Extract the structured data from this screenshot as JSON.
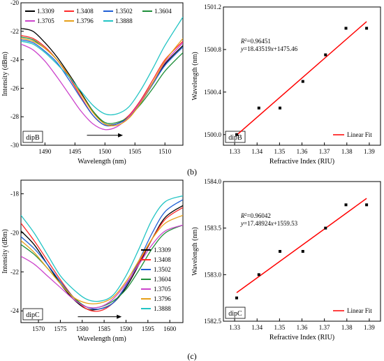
{
  "panel_labels": {
    "b": "(b)",
    "c": "(c)"
  },
  "colors": {
    "1.3309": "#000000",
    "1.3408": "#ff2a2a",
    "1.3502": "#1f5fd6",
    "1.3604": "#1e8f3a",
    "1.3705": "#cc44cc",
    "1.3796": "#e6a019",
    "1.3888": "#22c4c4",
    "fit": "#ff0000"
  },
  "chart_data": [
    {
      "id": "b_left",
      "type": "line",
      "xlabel": "Wavelength (nm)",
      "ylabel": "Intensity (dBm)",
      "xlim": [
        1486,
        1513
      ],
      "ylim": [
        -30,
        -20
      ],
      "xticks": [
        1490,
        1495,
        1500,
        1505,
        1510
      ],
      "yticks": [
        -30,
        -28,
        -26,
        -24,
        -22,
        -20
      ],
      "tag": "dipB",
      "arrow": [
        1497,
        1503,
        -29.3
      ],
      "legend": {
        "layout": "grid",
        "position": "top-left"
      },
      "series": [
        {
          "name": "1.3309",
          "x": [
            1486,
            1488,
            1490,
            1492,
            1494,
            1496,
            1498,
            1500,
            1502,
            1504,
            1506,
            1508,
            1510,
            1513
          ],
          "y": [
            -21.8,
            -22.0,
            -22.8,
            -23.8,
            -25.0,
            -26.3,
            -27.6,
            -28.5,
            -28.5,
            -28.0,
            -26.9,
            -25.6,
            -24.3,
            -23.0
          ]
        },
        {
          "name": "1.3408",
          "x": [
            1486,
            1488,
            1490,
            1492,
            1494,
            1496,
            1498,
            1500,
            1502,
            1504,
            1506,
            1508,
            1510,
            1513
          ],
          "y": [
            -22.3,
            -22.5,
            -23.1,
            -24.0,
            -25.2,
            -26.6,
            -27.9,
            -28.6,
            -28.5,
            -27.9,
            -26.8,
            -25.4,
            -24.0,
            -22.7
          ]
        },
        {
          "name": "1.3502",
          "x": [
            1486,
            1488,
            1490,
            1492,
            1494,
            1496,
            1498,
            1500,
            1502,
            1504,
            1506,
            1508,
            1510,
            1513
          ],
          "y": [
            -22.6,
            -22.8,
            -23.4,
            -24.2,
            -25.4,
            -26.7,
            -27.9,
            -28.6,
            -28.5,
            -28.0,
            -27.0,
            -25.7,
            -24.4,
            -23.1
          ]
        },
        {
          "name": "1.3604",
          "x": [
            1486,
            1488,
            1490,
            1492,
            1494,
            1496,
            1498,
            1500,
            1502,
            1504,
            1506,
            1508,
            1510,
            1513
          ],
          "y": [
            -22.4,
            -22.6,
            -23.2,
            -24.0,
            -25.1,
            -26.4,
            -27.6,
            -28.4,
            -28.4,
            -28.0,
            -27.1,
            -26.0,
            -24.8,
            -23.5
          ]
        },
        {
          "name": "1.3705",
          "x": [
            1486,
            1488,
            1490,
            1492,
            1494,
            1496,
            1498,
            1500,
            1502,
            1504,
            1506,
            1508,
            1510,
            1513
          ],
          "y": [
            -22.9,
            -23.3,
            -24.1,
            -25.2,
            -26.4,
            -27.6,
            -28.5,
            -28.9,
            -28.7,
            -28.0,
            -26.9,
            -25.6,
            -24.2,
            -22.8
          ]
        },
        {
          "name": "1.3796",
          "x": [
            1486,
            1488,
            1490,
            1492,
            1494,
            1496,
            1498,
            1500,
            1502,
            1504,
            1506,
            1508,
            1510,
            1513
          ],
          "y": [
            -22.5,
            -22.7,
            -23.2,
            -24.0,
            -25.1,
            -26.4,
            -27.7,
            -28.5,
            -28.6,
            -28.1,
            -27.0,
            -25.6,
            -24.1,
            -22.5
          ]
        },
        {
          "name": "1.3888",
          "x": [
            1486,
            1488,
            1490,
            1492,
            1494,
            1496,
            1498,
            1500,
            1502,
            1504,
            1506,
            1508,
            1510,
            1513
          ],
          "y": [
            -22.7,
            -22.9,
            -23.5,
            -24.3,
            -25.2,
            -26.2,
            -27.2,
            -27.8,
            -27.8,
            -27.3,
            -26.1,
            -24.6,
            -23.0,
            -21.0
          ]
        }
      ]
    },
    {
      "id": "b_right",
      "type": "scatter",
      "xlabel": "Refractive Index (RIU)",
      "ylabel": "Wavelength (nm)",
      "xlim": [
        1.325,
        1.395
      ],
      "ylim": [
        1499.9,
        1501.2
      ],
      "xticks": [
        1.33,
        1.34,
        1.35,
        1.36,
        1.37,
        1.38,
        1.39
      ],
      "yticks": [
        1500.0,
        1500.4,
        1500.8,
        1501.2
      ],
      "ytick_decimals": 1,
      "tag": "dipB",
      "x": [
        1.3309,
        1.3408,
        1.3502,
        1.3604,
        1.3705,
        1.3796,
        1.3888
      ],
      "y": [
        1500.0,
        1500.25,
        1500.25,
        1500.5,
        1500.75,
        1501.0,
        1501.0
      ],
      "fit": {
        "slope": 18.43519,
        "intercept": 1475.46,
        "x_range": [
          1.3309,
          1.3888
        ],
        "name": "Linear Fit"
      },
      "annotation": {
        "r2": "=0.96451",
        "eq_y": "y",
        "eq_mid": "=18.43519",
        "eq_x": "x",
        "eq_end": "+1475.46"
      },
      "legend": {
        "position": "bottom-right"
      }
    },
    {
      "id": "c_left",
      "type": "line",
      "xlabel": "Wavelength (nm)",
      "ylabel": "Intensity (dBm)",
      "xlim": [
        1566,
        1603
      ],
      "ylim": [
        -24.6,
        -17.3
      ],
      "xticks": [
        1570,
        1575,
        1580,
        1585,
        1590,
        1595,
        1600
      ],
      "yticks": [
        -24,
        -22,
        -20,
        -18
      ],
      "tag": "dipC",
      "arrow": [
        1579,
        1589,
        -24.3
      ],
      "legend": {
        "layout": "column",
        "position": "bottom-right"
      },
      "series": [
        {
          "name": "1.3309",
          "x": [
            1566,
            1569,
            1572,
            1575,
            1578,
            1581,
            1584,
            1587,
            1590,
            1593,
            1596,
            1599,
            1603
          ],
          "y": [
            -19.9,
            -20.6,
            -21.6,
            -22.6,
            -23.4,
            -23.9,
            -23.9,
            -23.6,
            -22.8,
            -21.6,
            -20.3,
            -19.2,
            -18.6
          ]
        },
        {
          "name": "1.3408",
          "x": [
            1566,
            1569,
            1572,
            1575,
            1578,
            1581,
            1584,
            1587,
            1590,
            1593,
            1596,
            1599,
            1603
          ],
          "y": [
            -19.5,
            -20.4,
            -21.4,
            -22.4,
            -23.3,
            -23.9,
            -24.0,
            -23.6,
            -22.7,
            -21.5,
            -20.3,
            -19.3,
            -18.7
          ]
        },
        {
          "name": "1.3502",
          "x": [
            1566,
            1569,
            1572,
            1575,
            1578,
            1581,
            1584,
            1587,
            1590,
            1593,
            1596,
            1599,
            1603
          ],
          "y": [
            -20.2,
            -20.8,
            -21.6,
            -22.5,
            -23.3,
            -23.8,
            -23.9,
            -23.6,
            -22.7,
            -21.4,
            -20.0,
            -18.9,
            -18.3
          ]
        },
        {
          "name": "1.3604",
          "x": [
            1566,
            1569,
            1572,
            1575,
            1578,
            1581,
            1584,
            1587,
            1590,
            1593,
            1596,
            1599,
            1603
          ],
          "y": [
            -20.6,
            -21.1,
            -21.8,
            -22.6,
            -23.3,
            -23.8,
            -23.8,
            -23.5,
            -22.9,
            -21.9,
            -20.8,
            -20.0,
            -19.6
          ]
        },
        {
          "name": "1.3705",
          "x": [
            1566,
            1569,
            1572,
            1575,
            1578,
            1581,
            1584,
            1587,
            1590,
            1593,
            1596,
            1599,
            1603
          ],
          "y": [
            -21.2,
            -21.6,
            -22.2,
            -22.8,
            -23.4,
            -23.8,
            -23.8,
            -23.4,
            -22.6,
            -21.6,
            -20.6,
            -19.9,
            -19.6
          ]
        },
        {
          "name": "1.3796",
          "x": [
            1566,
            1569,
            1572,
            1575,
            1578,
            1581,
            1584,
            1587,
            1590,
            1593,
            1596,
            1599,
            1603
          ],
          "y": [
            -20.4,
            -21.0,
            -21.8,
            -22.6,
            -23.3,
            -23.6,
            -23.6,
            -23.3,
            -22.5,
            -21.4,
            -20.3,
            -19.5,
            -19.1
          ]
        },
        {
          "name": "1.3888",
          "x": [
            1566,
            1569,
            1572,
            1575,
            1578,
            1581,
            1584,
            1587,
            1590,
            1593,
            1596,
            1599,
            1603
          ],
          "y": [
            -19.1,
            -20.0,
            -21.1,
            -22.2,
            -22.9,
            -23.4,
            -23.5,
            -23.2,
            -22.2,
            -20.8,
            -19.3,
            -18.4,
            -18.1
          ]
        }
      ]
    },
    {
      "id": "c_right",
      "type": "scatter",
      "xlabel": "Refractive Index (RIU)",
      "ylabel": "Wavelength (nm)",
      "xlim": [
        1.325,
        1.395
      ],
      "ylim": [
        1582.5,
        1584.0
      ],
      "xticks": [
        1.33,
        1.34,
        1.35,
        1.36,
        1.37,
        1.38,
        1.39
      ],
      "yticks": [
        1582.5,
        1583.0,
        1583.5,
        1584.0
      ],
      "ytick_decimals": 1,
      "tag": "dipC",
      "x": [
        1.3309,
        1.3408,
        1.3502,
        1.3604,
        1.3705,
        1.3796,
        1.3888
      ],
      "y": [
        1582.75,
        1583.0,
        1583.25,
        1583.25,
        1583.5,
        1583.75,
        1583.75
      ],
      "fit": {
        "slope": 17.48924,
        "intercept": 1559.53,
        "x_range": [
          1.3309,
          1.3888
        ],
        "name": "Linear Fit"
      },
      "annotation": {
        "r2": "=0.96042",
        "eq_y": "y",
        "eq_mid": "=17.48924",
        "eq_x": "x",
        "eq_end": "+1559.53"
      },
      "legend": {
        "position": "bottom-right"
      }
    }
  ]
}
